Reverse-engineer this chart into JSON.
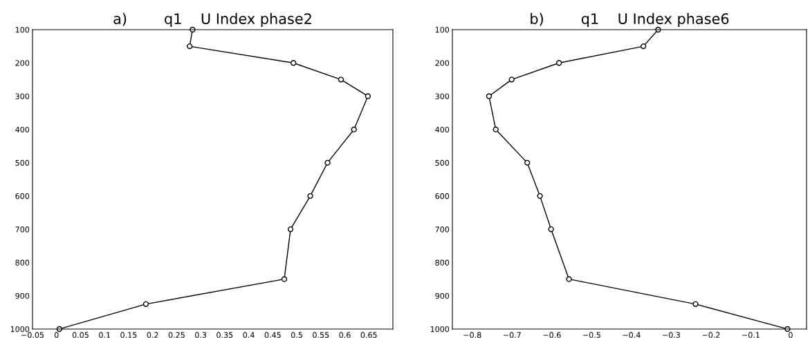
{
  "chart_data": [
    {
      "type": "line",
      "title": "a)        q1    U Index phase2",
      "marker": "circle",
      "grid": false,
      "series": [
        {
          "color": "#000000",
          "x": [
            0.283,
            0.277,
            0.493,
            0.592,
            0.648,
            0.619,
            0.564,
            0.528,
            0.487,
            0.474,
            0.186,
            0.006
          ],
          "values": [
            100,
            150,
            200,
            250,
            300,
            400,
            500,
            600,
            700,
            850,
            925,
            1000
          ]
        }
      ],
      "xlim": [
        -0.05,
        0.7
      ],
      "xticks": [
        {
          "value": -0.05,
          "label": "−0.05"
        },
        0,
        0.05,
        0.1,
        0.15,
        0.2,
        0.25,
        0.3,
        0.35,
        0.4,
        0.45,
        0.5,
        0.55,
        0.6,
        0.65
      ],
      "ylim": [
        1000,
        100
      ],
      "yticks": [
        100,
        200,
        300,
        400,
        500,
        600,
        700,
        800,
        900,
        1000
      ]
    },
    {
      "type": "line",
      "title": "b)        q1    U Index phase6",
      "marker": "circle",
      "grid": false,
      "series": [
        {
          "color": "#000000",
          "x": [
            -0.333,
            -0.37,
            -0.582,
            -0.701,
            -0.758,
            -0.741,
            -0.662,
            -0.63,
            -0.602,
            -0.557,
            -0.239,
            -0.008
          ],
          "values": [
            100,
            150,
            200,
            250,
            300,
            400,
            500,
            600,
            700,
            850,
            925,
            1000
          ]
        }
      ],
      "xlim": [
        -0.85,
        0.04
      ],
      "xticks": [
        {
          "value": -0.8,
          "label": "−0.8"
        },
        {
          "value": -0.7,
          "label": "−0.7"
        },
        {
          "value": -0.6,
          "label": "−0.6"
        },
        {
          "value": -0.5,
          "label": "−0.5"
        },
        {
          "value": -0.4,
          "label": "−0.4"
        },
        {
          "value": -0.3,
          "label": "−0.3"
        },
        {
          "value": -0.2,
          "label": "−0.2"
        },
        {
          "value": -0.1,
          "label": "−0.1"
        },
        0
      ],
      "ylim": [
        1000,
        100
      ],
      "yticks": [
        100,
        200,
        300,
        400,
        500,
        600,
        700,
        800,
        900,
        1000
      ]
    }
  ]
}
